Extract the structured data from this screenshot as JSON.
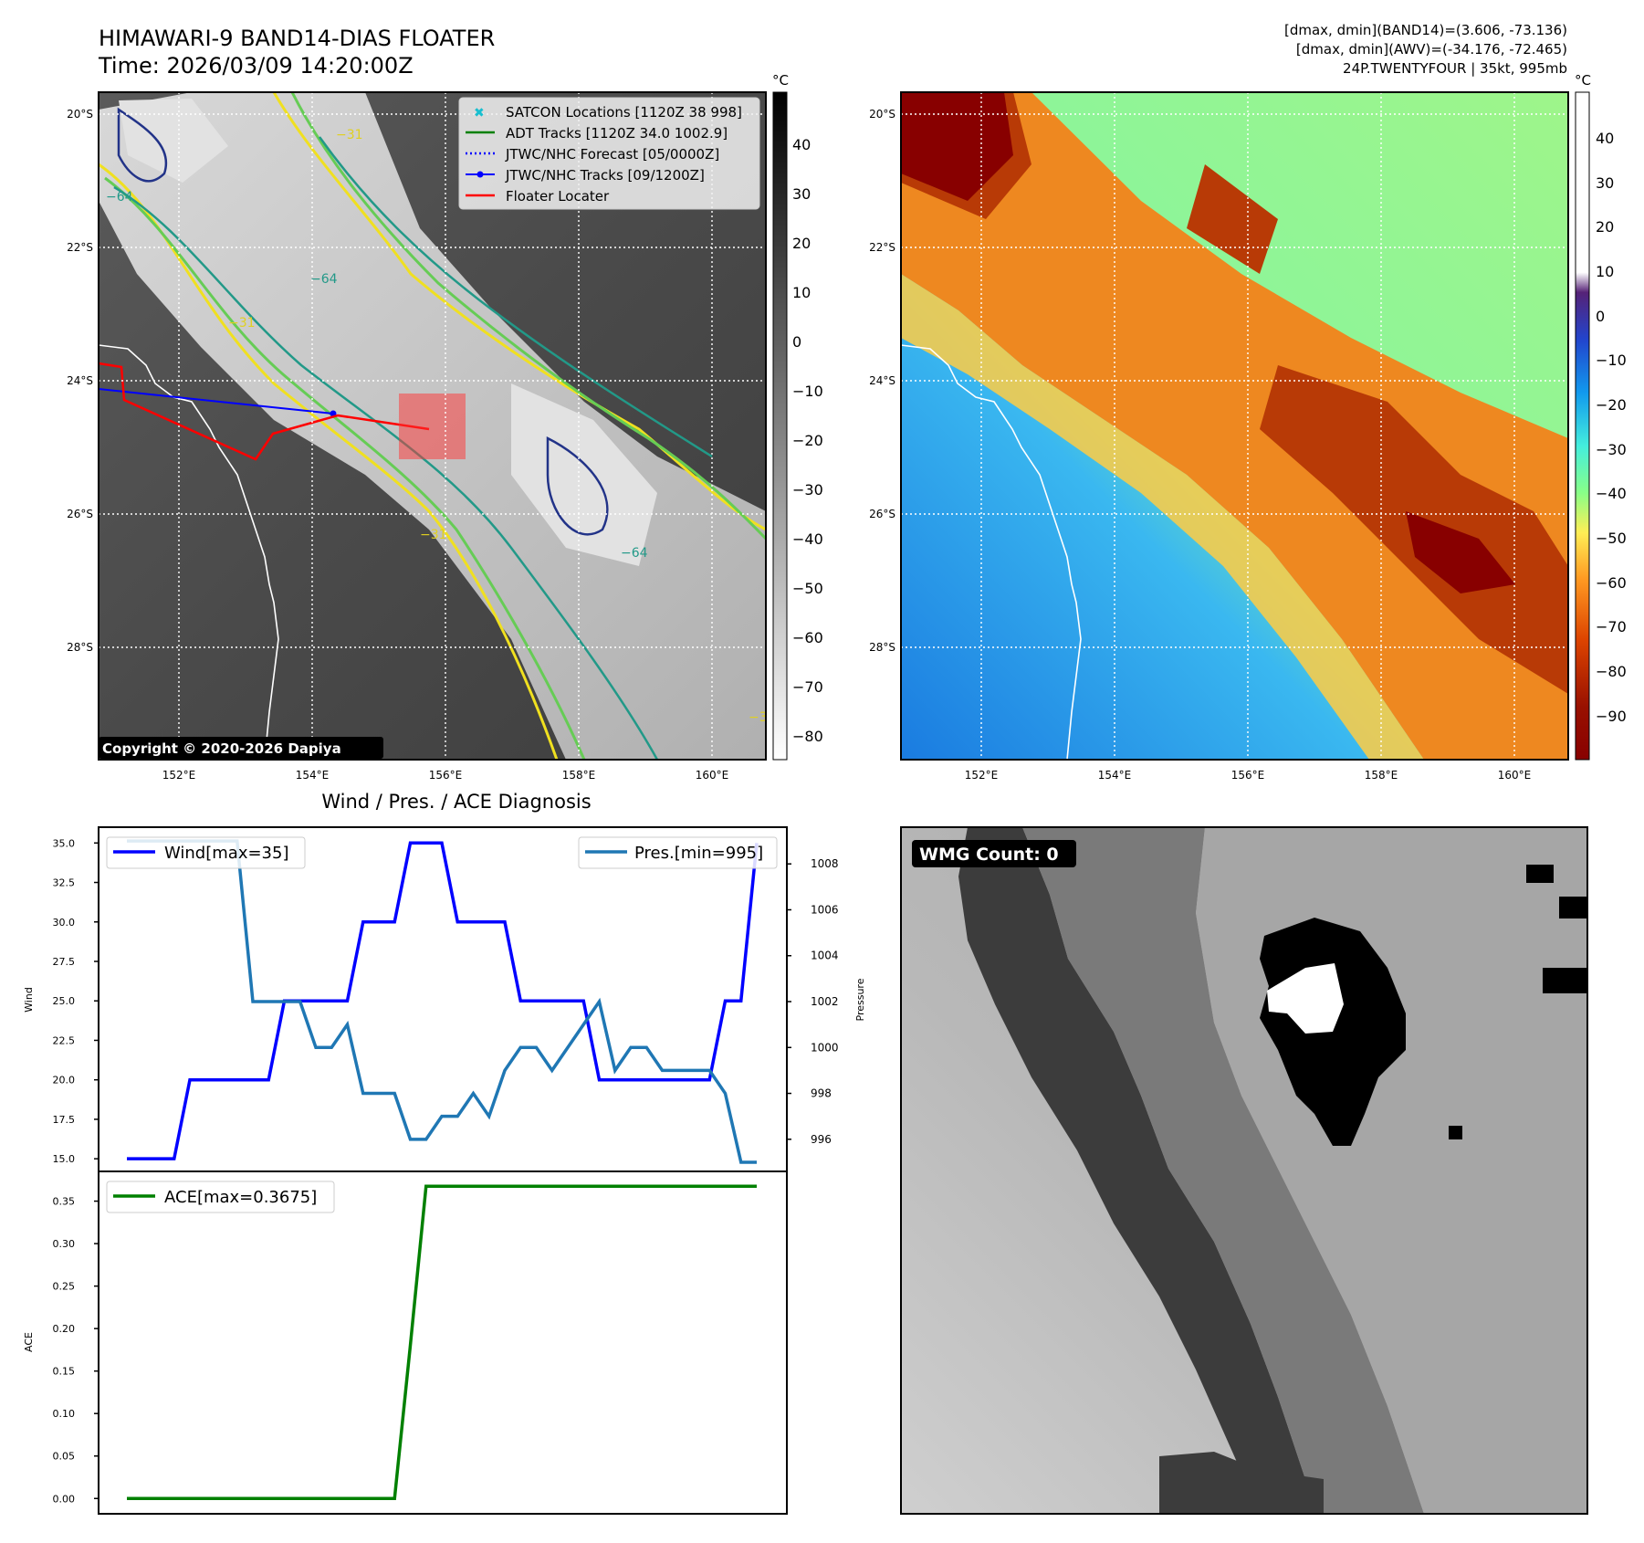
{
  "header": {
    "title": "HIMAWARI-9 BAND14-DIAS FLOATER",
    "time": "Time: 2026/03/09 14:20:00Z",
    "stats_band14": "[dmax, dmin](BAND14)=(3.606, -73.136)",
    "stats_awv": "[dmax, dmin](AWV)=(-34.176, -72.465)",
    "storm": "24P.TWENTYFOUR | 35kt, 995mb"
  },
  "map_axes": {
    "lat_ticks": [
      "20°S",
      "22°S",
      "24°S",
      "26°S",
      "28°S"
    ],
    "lon_ticks": [
      "152°E",
      "154°E",
      "156°E",
      "158°E",
      "160°E"
    ]
  },
  "panel_ir": {
    "legend": [
      {
        "label": "SATCON Locations [1120Z 38 998]",
        "color": "#17becf",
        "style": "x"
      },
      {
        "label": "ADT Tracks [1120Z 34.0 1002.9]",
        "color": "#008000",
        "style": "line"
      },
      {
        "label": "JTWC/NHC Forecast [05/0000Z]",
        "color": "#0000ff",
        "style": "dotted"
      },
      {
        "label": "JTWC/NHC Tracks [09/1200Z]",
        "color": "#0000ff",
        "style": "line-dot"
      },
      {
        "label": "Floater Locater",
        "color": "#ff0000",
        "style": "line"
      }
    ],
    "copyright": "Copyright © 2020-2026 Dapiya",
    "colorbar_unit": "°C",
    "colorbar_ticks": [
      "40",
      "30",
      "20",
      "10",
      "0",
      "−10",
      "−20",
      "−30",
      "−40",
      "−50",
      "−60",
      "−70",
      "−80"
    ],
    "contour_labels": [
      "−31",
      "−31",
      "−31",
      "−64",
      "−64",
      "−64",
      "−31"
    ]
  },
  "panel_awv": {
    "colorbar_unit": "°C",
    "colorbar_ticks": [
      "40",
      "30",
      "20",
      "10",
      "0",
      "−10",
      "−20",
      "−30",
      "−40",
      "−50",
      "−60",
      "−70",
      "−80",
      "−90"
    ]
  },
  "diagnosis": {
    "title": "Wind / Pres. / ACE Diagnosis",
    "wmg_label": "WMG Count: 0"
  },
  "chart_data": [
    {
      "type": "line",
      "title": "Wind / Pres. / ACE Diagnosis",
      "ylabel": "Wind",
      "y2label": "Pressure",
      "ylim": [
        14.2,
        36.0
      ],
      "y2lim": [
        994.6,
        1009.6
      ],
      "yticks": [
        "15.0",
        "17.5",
        "20.0",
        "22.5",
        "25.0",
        "27.5",
        "30.0",
        "32.5",
        "35.0"
      ],
      "y2ticks": [
        "996",
        "998",
        "1000",
        "1002",
        "1004",
        "1006",
        "1008"
      ],
      "x": [
        0,
        1,
        2,
        3,
        4,
        5,
        6,
        7,
        8,
        9,
        10,
        11,
        12,
        13,
        14,
        15,
        16,
        17,
        18,
        19,
        20,
        21,
        22,
        23,
        24,
        25,
        26,
        27,
        28,
        29,
        30,
        31,
        32,
        33,
        34,
        35,
        36,
        37,
        38,
        39,
        40
      ],
      "series": [
        {
          "name": "Wind[max=35]",
          "axis": "left",
          "color": "#0000ff",
          "values": [
            15,
            15,
            15,
            15,
            20,
            20,
            20,
            20,
            20,
            20,
            25,
            25,
            25,
            25,
            25,
            30,
            30,
            30,
            35,
            35,
            35,
            30,
            30,
            30,
            30,
            25,
            25,
            25,
            25,
            25,
            20,
            20,
            20,
            20,
            20,
            20,
            20,
            20,
            25,
            25,
            35
          ]
        },
        {
          "name": "Pres.[min=995]",
          "axis": "right",
          "color": "#1f77b4",
          "values": [
            1009,
            1009,
            1009,
            1009,
            1009,
            1009,
            1009,
            1009,
            1002,
            1002,
            1002,
            1002,
            1000,
            1000,
            1001,
            998,
            998,
            998,
            996,
            996,
            997,
            997,
            998,
            997,
            999,
            1000,
            1000,
            999,
            1000,
            1001,
            1002,
            999,
            1000,
            1000,
            999,
            999,
            999,
            999,
            998,
            995,
            995
          ]
        }
      ]
    },
    {
      "type": "line",
      "ylabel": "ACE",
      "ylim": [
        -0.018,
        0.385
      ],
      "yticks": [
        "0.00",
        "0.05",
        "0.10",
        "0.15",
        "0.20",
        "0.25",
        "0.30",
        "0.35"
      ],
      "x": [
        0,
        1,
        2,
        3,
        4,
        5,
        6,
        7,
        8,
        9,
        10,
        11,
        12,
        13,
        14,
        15,
        16,
        17,
        18,
        19,
        20,
        21,
        22,
        23,
        24,
        25,
        26,
        27,
        28,
        29,
        30,
        31,
        32,
        33,
        34,
        35,
        36,
        37,
        38,
        39,
        40
      ],
      "series": [
        {
          "name": "ACE[max=0.3675]",
          "color": "#008000",
          "values": [
            0,
            0,
            0,
            0,
            0,
            0,
            0,
            0,
            0,
            0,
            0,
            0,
            0,
            0,
            0,
            0,
            0,
            0,
            0.18,
            0.3675,
            0.3675,
            0.3675,
            0.3675,
            0.3675,
            0.3675,
            0.3675,
            0.3675,
            0.3675,
            0.3675,
            0.3675,
            0.3675,
            0.3675,
            0.3675,
            0.3675,
            0.3675,
            0.3675,
            0.3675,
            0.3675,
            0.3675,
            0.3675,
            0.3675
          ]
        }
      ]
    }
  ]
}
